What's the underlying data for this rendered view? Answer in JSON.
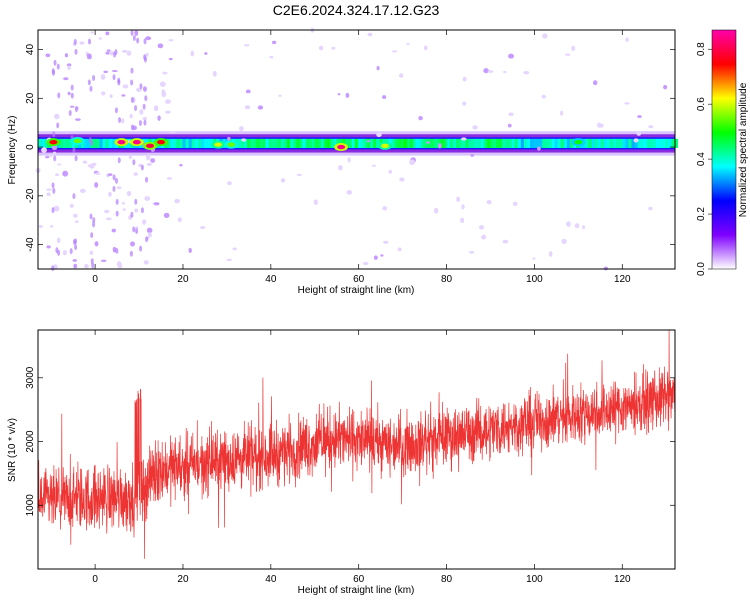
{
  "title": "C2E6.2024.324.17.12.G23",
  "chart_data": [
    {
      "type": "heatmap",
      "xlabel": "Height of straight line (km)",
      "ylabel": "Frequency (Hz)",
      "xlim": [
        -13,
        132
      ],
      "ylim": [
        -50,
        48
      ],
      "x_ticks": [
        0,
        20,
        40,
        60,
        80,
        100,
        120
      ],
      "y_ticks": [
        -40,
        -20,
        0,
        20,
        40
      ],
      "colorbar": {
        "label": "Normalized spectral amplitude",
        "range": [
          0,
          0.87
        ],
        "ticks": [
          "0.0",
          "0.2",
          "0.4",
          "0.6",
          "0.8"
        ],
        "colors": [
          "#ffffff",
          "#7f00ff",
          "#0000ff",
          "#00ffff",
          "#00ff00",
          "#ffff00",
          "#ff0000",
          "#ff00aa"
        ]
      },
      "band": {
        "center_hz": 1.5,
        "core_halfwidth_hz": 2.5,
        "halo_halfwidth_hz": 5
      },
      "hotspots": [
        {
          "x": -9.5,
          "f": 2,
          "amp": 0.75
        },
        {
          "x": -4,
          "f": 2.5,
          "amp": 0.55
        },
        {
          "x": 6,
          "f": 2,
          "amp": 0.85
        },
        {
          "x": 9.5,
          "f": 2,
          "amp": 0.85
        },
        {
          "x": 12.5,
          "f": 0.5,
          "amp": 0.8
        },
        {
          "x": 15,
          "f": 2,
          "amp": 0.75
        },
        {
          "x": 28,
          "f": 1,
          "amp": 0.6
        },
        {
          "x": 31,
          "f": 1,
          "amp": 0.55
        },
        {
          "x": 56,
          "f": 0,
          "amp": 0.85
        },
        {
          "x": 66,
          "f": 0.5,
          "amp": 0.6
        },
        {
          "x": 110,
          "f": 2,
          "amp": 0.5
        }
      ]
    },
    {
      "type": "line",
      "xlabel": "Height of straight line (km)",
      "ylabel": "SNR (10 * v/v)",
      "xlim": [
        -13,
        132
      ],
      "ylim": [
        0,
        3750
      ],
      "x_ticks": [
        0,
        20,
        40,
        60,
        80,
        100,
        120
      ],
      "y_ticks": [
        1000,
        2000,
        3000
      ],
      "color": "#ee3333",
      "trend": [
        {
          "x": -13,
          "mean": 1050,
          "spread": 450
        },
        {
          "x": 10,
          "mean": 1150,
          "spread": 500
        },
        {
          "x": 14,
          "mean": 1550,
          "spread": 450
        },
        {
          "x": 40,
          "mean": 1800,
          "spread": 450
        },
        {
          "x": 55,
          "mean": 2050,
          "spread": 450
        },
        {
          "x": 70,
          "mean": 1950,
          "spread": 420
        },
        {
          "x": 95,
          "mean": 2250,
          "spread": 420
        },
        {
          "x": 132,
          "mean": 2700,
          "spread": 420
        }
      ]
    }
  ]
}
